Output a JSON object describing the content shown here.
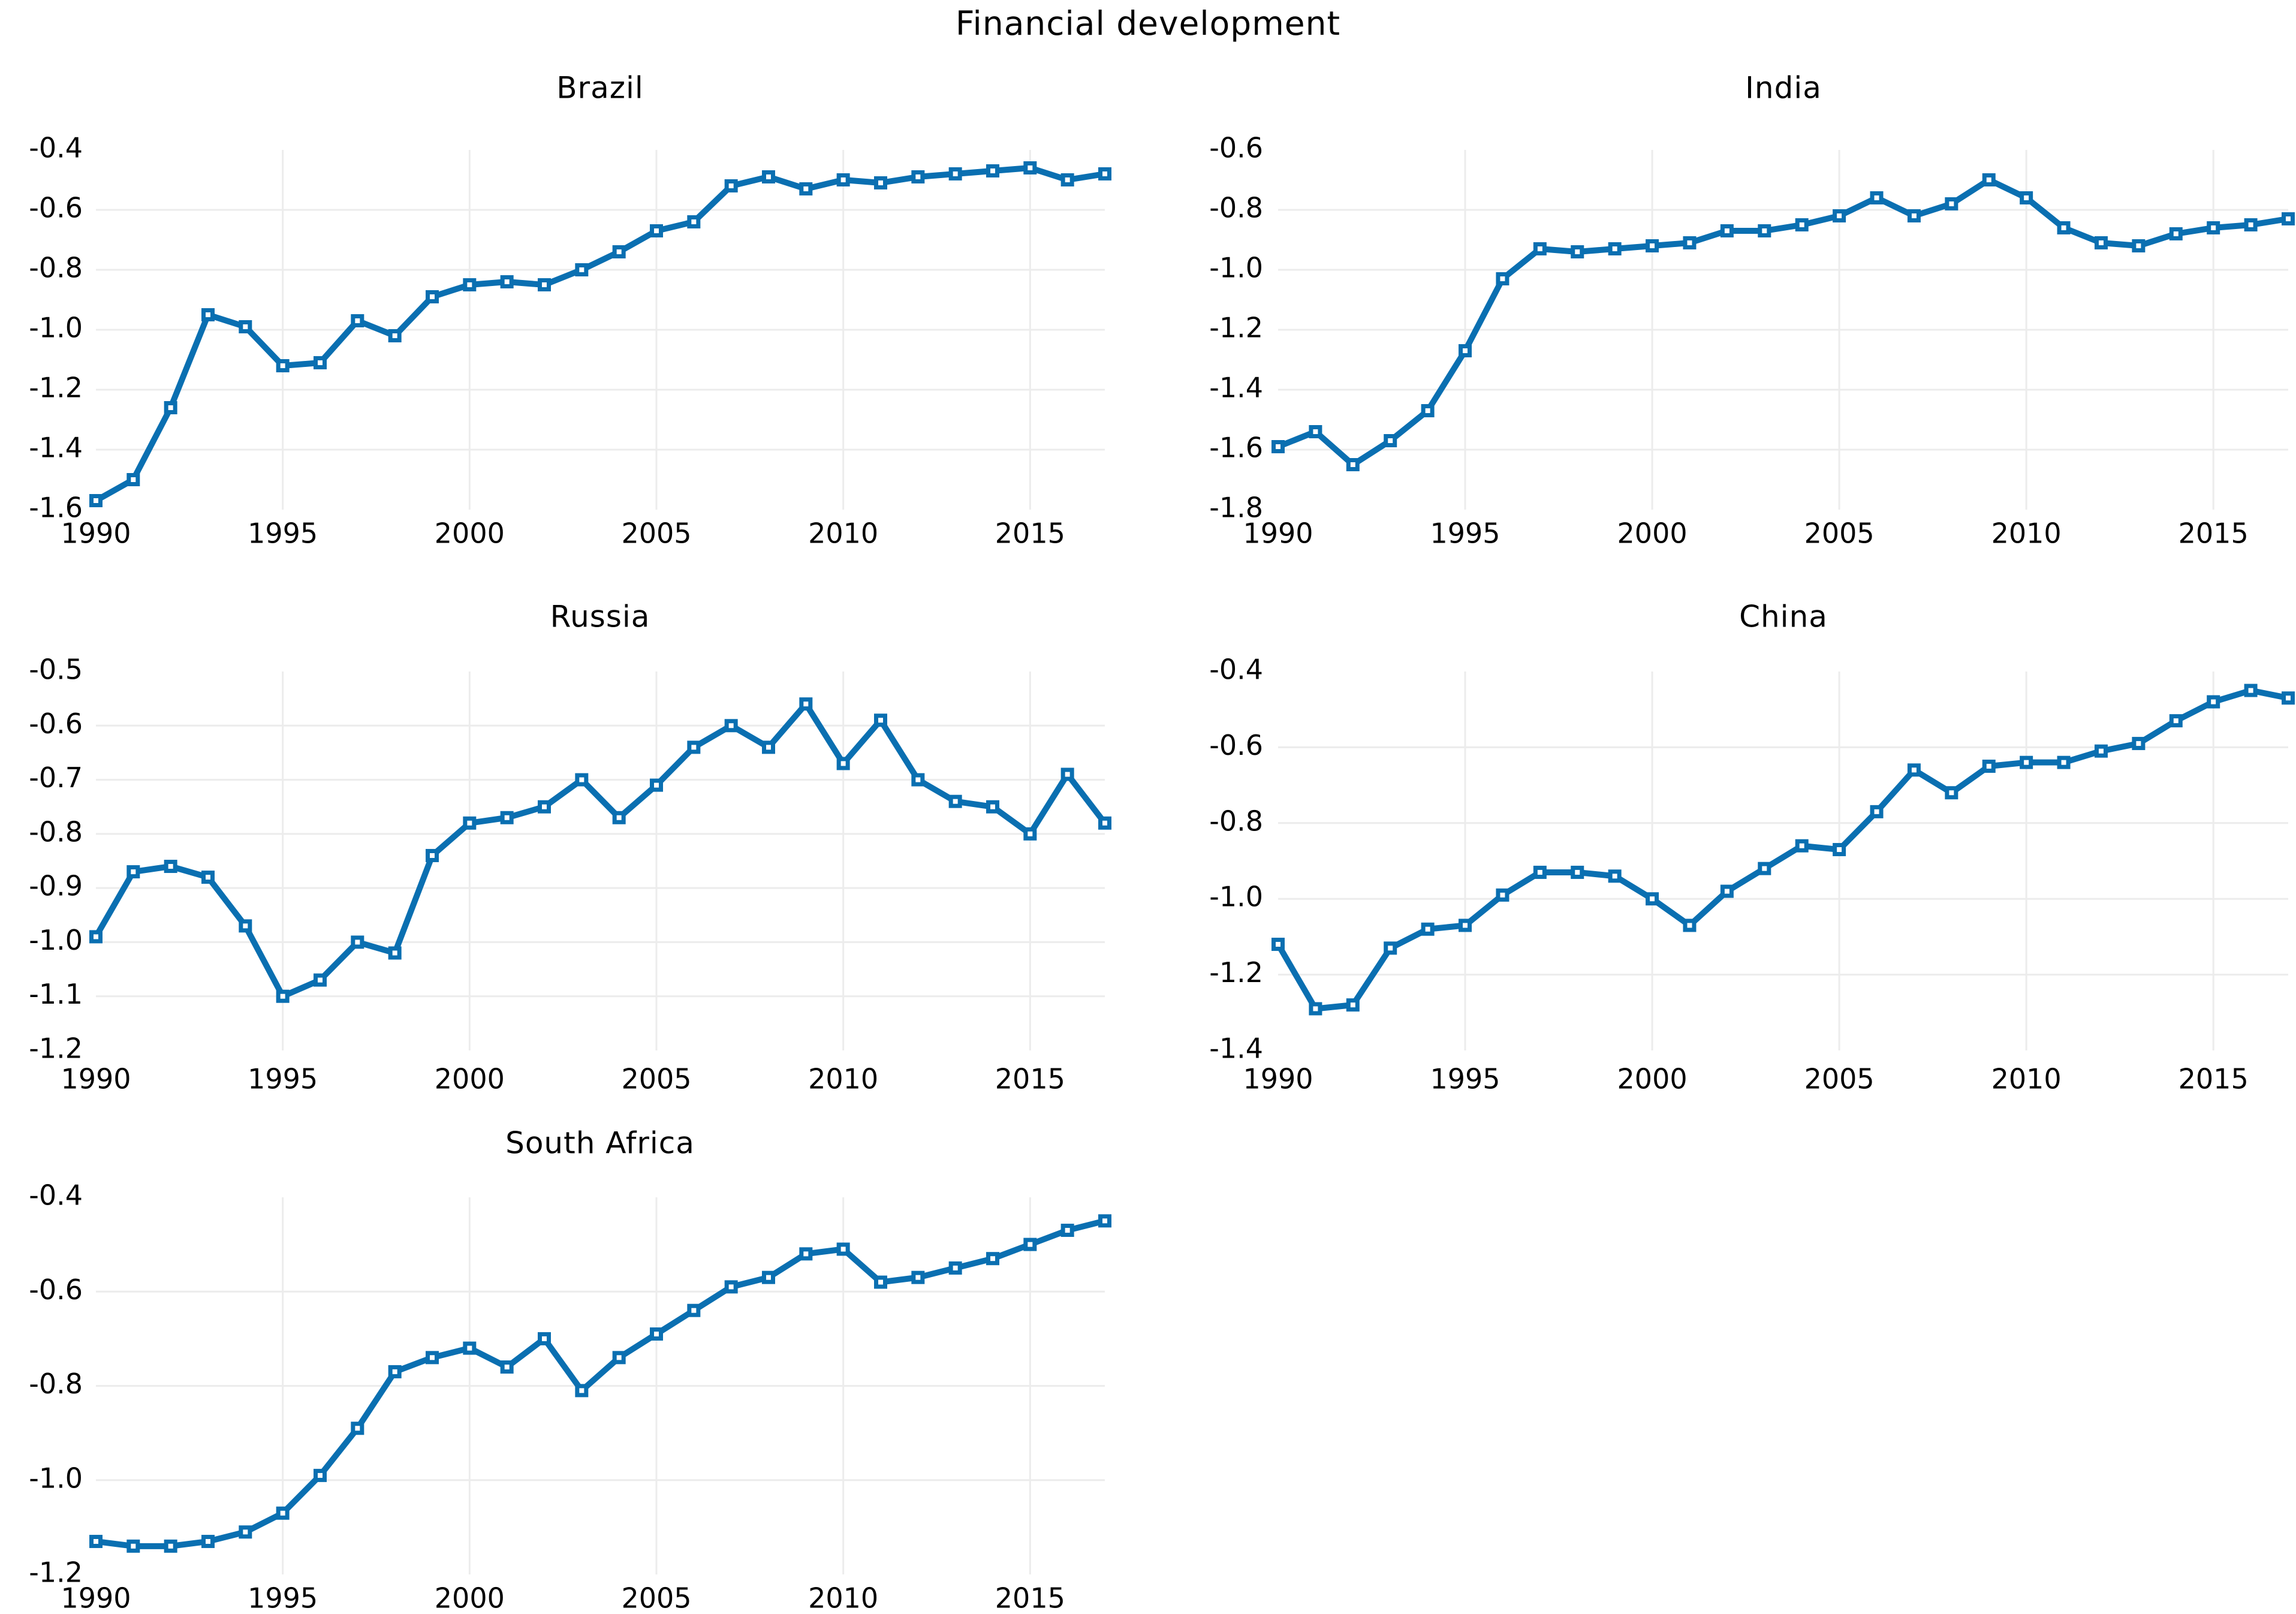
{
  "title": "Financial development",
  "style": {
    "line_color": "#0a6fb1",
    "grid_color": "#ececec",
    "marker_fill": "#ffffff",
    "text_color": "#000000",
    "background": "#ffffff"
  },
  "chart_data": [
    {
      "type": "line",
      "title": "Brazil",
      "x": [
        1990,
        1991,
        1992,
        1993,
        1994,
        1995,
        1996,
        1997,
        1998,
        1999,
        2000,
        2001,
        2002,
        2003,
        2004,
        2005,
        2006,
        2007,
        2008,
        2009,
        2010,
        2011,
        2012,
        2013,
        2014,
        2015,
        2016,
        2017
      ],
      "values": [
        -1.57,
        -1.5,
        -1.26,
        -0.95,
        -0.99,
        -1.12,
        -1.11,
        -0.97,
        -1.02,
        -0.89,
        -0.85,
        -0.84,
        -0.85,
        -0.8,
        -0.74,
        -0.67,
        -0.64,
        -0.52,
        -0.49,
        -0.53,
        -0.5,
        -0.51,
        -0.49,
        -0.48,
        -0.47,
        -0.46,
        -0.5,
        -0.48
      ],
      "xlim": [
        1990,
        2017
      ],
      "ylim": [
        -1.6,
        -0.4
      ],
      "xticks": [
        1990,
        1995,
        2000,
        2005,
        2010,
        2015
      ],
      "xticklabels": [
        "1990",
        "1995",
        "2000",
        "2005",
        "2010",
        "2015"
      ],
      "yticks": [
        -0.4,
        -0.6,
        -0.8,
        -1.0,
        -1.2,
        -1.4,
        -1.6
      ],
      "yticklabels": [
        "-0.4",
        "-0.6",
        "-0.8",
        "-1.0",
        "-1.2",
        "-1.4",
        "-1.6"
      ],
      "grid": true,
      "legend": null
    },
    {
      "type": "line",
      "title": "India",
      "x": [
        1990,
        1991,
        1992,
        1993,
        1994,
        1995,
        1996,
        1997,
        1998,
        1999,
        2000,
        2001,
        2002,
        2003,
        2004,
        2005,
        2006,
        2007,
        2008,
        2009,
        2010,
        2011,
        2012,
        2013,
        2014,
        2015,
        2016,
        2017
      ],
      "values": [
        -1.59,
        -1.54,
        -1.65,
        -1.57,
        -1.47,
        -1.27,
        -1.03,
        -0.93,
        -0.94,
        -0.93,
        -0.92,
        -0.91,
        -0.87,
        -0.87,
        -0.85,
        -0.82,
        -0.76,
        -0.82,
        -0.78,
        -0.7,
        -0.76,
        -0.86,
        -0.91,
        -0.92,
        -0.88,
        -0.86,
        -0.85,
        -0.83
      ],
      "xlim": [
        1990,
        2017
      ],
      "ylim": [
        -1.8,
        -0.6
      ],
      "xticks": [
        1990,
        1995,
        2000,
        2005,
        2010,
        2015
      ],
      "xticklabels": [
        "1990",
        "1995",
        "2000",
        "2005",
        "2010",
        "2015"
      ],
      "yticks": [
        -0.6,
        -0.8,
        -1.0,
        -1.2,
        -1.4,
        -1.6,
        -1.8
      ],
      "yticklabels": [
        "-0.6",
        "-0.8",
        "-1.0",
        "-1.2",
        "-1.4",
        "-1.6",
        "-1.8"
      ],
      "grid": true,
      "legend": null
    },
    {
      "type": "line",
      "title": "Russia",
      "x": [
        1990,
        1991,
        1992,
        1993,
        1994,
        1995,
        1996,
        1997,
        1998,
        1999,
        2000,
        2001,
        2002,
        2003,
        2004,
        2005,
        2006,
        2007,
        2008,
        2009,
        2010,
        2011,
        2012,
        2013,
        2014,
        2015,
        2016,
        2017
      ],
      "values": [
        -0.99,
        -0.87,
        -0.86,
        -0.88,
        -0.97,
        -1.1,
        -1.07,
        -1.0,
        -1.02,
        -0.84,
        -0.78,
        -0.77,
        -0.75,
        -0.7,
        -0.77,
        -0.71,
        -0.64,
        -0.6,
        -0.64,
        -0.56,
        -0.67,
        -0.59,
        -0.7,
        -0.74,
        -0.75,
        -0.8,
        -0.69,
        -0.78
      ],
      "xlim": [
        1990,
        2017
      ],
      "ylim": [
        -1.2,
        -0.5
      ],
      "xticks": [
        1990,
        1995,
        2000,
        2005,
        2010,
        2015
      ],
      "xticklabels": [
        "1990",
        "1995",
        "2000",
        "2005",
        "2010",
        "2015"
      ],
      "yticks": [
        -0.5,
        -0.6,
        -0.7,
        -0.8,
        -0.9,
        -1.0,
        -1.1,
        -1.2
      ],
      "yticklabels": [
        "-0.5",
        "-0.6",
        "-0.7",
        "-0.8",
        "-0.9",
        "-1.0",
        "-1.1",
        "-1.2"
      ],
      "grid": true,
      "legend": null
    },
    {
      "type": "line",
      "title": "China",
      "x": [
        1990,
        1991,
        1992,
        1993,
        1994,
        1995,
        1996,
        1997,
        1998,
        1999,
        2000,
        2001,
        2002,
        2003,
        2004,
        2005,
        2006,
        2007,
        2008,
        2009,
        2010,
        2011,
        2012,
        2013,
        2014,
        2015,
        2016,
        2017
      ],
      "values": [
        -1.12,
        -1.29,
        -1.28,
        -1.13,
        -1.08,
        -1.07,
        -0.99,
        -0.93,
        -0.93,
        -0.94,
        -1.0,
        -1.07,
        -0.98,
        -0.92,
        -0.86,
        -0.87,
        -0.77,
        -0.66,
        -0.72,
        -0.65,
        -0.64,
        -0.64,
        -0.61,
        -0.59,
        -0.53,
        -0.48,
        -0.45,
        -0.47
      ],
      "xlim": [
        1990,
        2017
      ],
      "ylim": [
        -1.4,
        -0.4
      ],
      "xticks": [
        1990,
        1995,
        2000,
        2005,
        2010,
        2015
      ],
      "xticklabels": [
        "1990",
        "1995",
        "2000",
        "2005",
        "2010",
        "2015"
      ],
      "yticks": [
        -0.4,
        -0.6,
        -0.8,
        -1.0,
        -1.2,
        -1.4
      ],
      "yticklabels": [
        "-0.4",
        "-0.6",
        "-0.8",
        "-1.0",
        "-1.2",
        "-1.4"
      ],
      "grid": true,
      "legend": null
    },
    {
      "type": "line",
      "title": "South Africa",
      "x": [
        1990,
        1991,
        1992,
        1993,
        1994,
        1995,
        1996,
        1997,
        1998,
        1999,
        2000,
        2001,
        2002,
        2003,
        2004,
        2005,
        2006,
        2007,
        2008,
        2009,
        2010,
        2011,
        2012,
        2013,
        2014,
        2015,
        2016,
        2017
      ],
      "values": [
        -1.13,
        -1.14,
        -1.14,
        -1.13,
        -1.11,
        -1.07,
        -0.99,
        -0.89,
        -0.77,
        -0.74,
        -0.72,
        -0.76,
        -0.7,
        -0.81,
        -0.74,
        -0.69,
        -0.64,
        -0.59,
        -0.57,
        -0.52,
        -0.51,
        -0.58,
        -0.57,
        -0.55,
        -0.53,
        -0.5,
        -0.47,
        -0.45
      ],
      "xlim": [
        1990,
        2017
      ],
      "ylim": [
        -1.2,
        -0.4
      ],
      "xticks": [
        1990,
        1995,
        2000,
        2005,
        2010,
        2015
      ],
      "xticklabels": [
        "1990",
        "1995",
        "2000",
        "2005",
        "2010",
        "2015"
      ],
      "yticks": [
        -0.4,
        -0.6,
        -0.8,
        -1.0,
        -1.2
      ],
      "yticklabels": [
        "-0.4",
        "-0.6",
        "-0.8",
        "-1.0",
        "-1.2"
      ],
      "grid": true,
      "legend": null
    }
  ]
}
